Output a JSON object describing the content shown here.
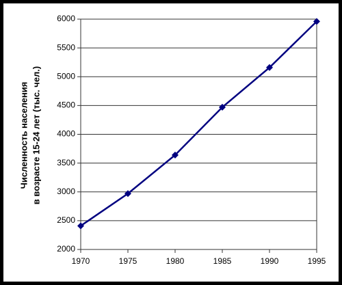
{
  "chart_data": {
    "type": "line",
    "ylabel": [
      "Численность населения",
      "в возрасте 15-24 лет (тыс. чел.)"
    ],
    "x": [
      1970,
      1975,
      1980,
      1985,
      1990,
      1995
    ],
    "values": [
      2410,
      2970,
      3640,
      4470,
      5160,
      5960
    ],
    "color": "#000080",
    "xlim": [
      1970,
      1995
    ],
    "xticks": [
      1970,
      1975,
      1980,
      1985,
      1990,
      1995
    ],
    "ylim": [
      2000,
      6000
    ],
    "yticks": [
      2000,
      2500,
      3000,
      3500,
      4000,
      4500,
      5000,
      5500,
      6000
    ],
    "grid": true
  }
}
